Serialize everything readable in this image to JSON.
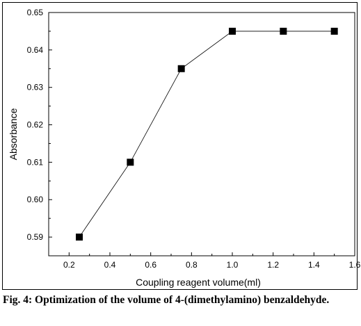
{
  "chart_data": {
    "type": "line",
    "x": [
      0.25,
      0.5,
      0.75,
      1.0,
      1.25,
      1.5
    ],
    "series": [
      {
        "values": [
          0.59,
          0.61,
          0.635,
          0.645,
          0.645,
          0.645
        ]
      }
    ],
    "xlabel": "Coupling reagent volume(ml)",
    "ylabel": "Absorbance",
    "xlim": [
      0.1,
      1.6
    ],
    "ylim": [
      0.585,
      0.65
    ],
    "xticks": [
      "0.2",
      "0.4",
      "0.6",
      "0.8",
      "1.0",
      "1.2",
      "1.4",
      "1.6"
    ],
    "yticks": [
      "0.59",
      "0.60",
      "0.61",
      "0.62",
      "0.63",
      "0.64",
      "0.65"
    ],
    "grid": false,
    "marker": "square"
  },
  "caption": "Fig. 4: Optimization of the volume of 4-(dimethylamino) benzaldehyde."
}
